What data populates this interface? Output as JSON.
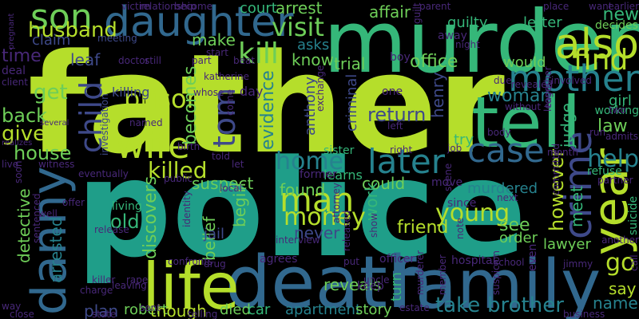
{
  "palette": {
    "background": "#000000",
    "lime": "#b5de2b",
    "green": "#6ece58",
    "teal": "#35b779",
    "sea": "#1f9e89",
    "cyan": "#26828e",
    "blue": "#31688e",
    "indigo": "#3e4989",
    "violet": "#482878",
    "purple": "#440154"
  },
  "words": [
    {
      "text": "father",
      "color": "lime"
    },
    {
      "text": "police",
      "color": "sea"
    },
    {
      "text": "murder",
      "color": "teal"
    },
    {
      "text": "death",
      "color": "blue"
    },
    {
      "text": "family",
      "color": "blue"
    },
    {
      "text": "tell",
      "color": "teal"
    },
    {
      "text": "life",
      "color": "lime"
    },
    {
      "text": "daughter",
      "color": "blue"
    },
    {
      "text": "danny",
      "color": "blue"
    },
    {
      "text": "son",
      "color": "green"
    },
    {
      "text": "also",
      "color": "lime"
    },
    {
      "text": "mother",
      "color": "cyan"
    },
    {
      "text": "year",
      "color": "lime"
    },
    {
      "text": "crime",
      "color": "indigo"
    },
    {
      "text": "man",
      "color": "lime"
    },
    {
      "text": "wife",
      "color": "lime"
    },
    {
      "text": "later",
      "color": "cyan"
    },
    {
      "text": "case",
      "color": "blue"
    },
    {
      "text": "child",
      "color": "indigo"
    },
    {
      "text": "tom",
      "color": "indigo"
    },
    {
      "text": "prison",
      "color": "lime"
    },
    {
      "text": "kill",
      "color": "green"
    },
    {
      "text": "find",
      "color": "lime"
    },
    {
      "text": "husband",
      "color": "lime"
    },
    {
      "text": "visit",
      "color": "green"
    },
    {
      "text": "take",
      "color": "cyan"
    },
    {
      "text": "brother",
      "color": "cyan"
    },
    {
      "text": "home",
      "color": "cyan"
    },
    {
      "text": "killed",
      "color": "lime"
    },
    {
      "text": "money",
      "color": "lime"
    },
    {
      "text": "young",
      "color": "lime"
    },
    {
      "text": "however",
      "color": "lime"
    },
    {
      "text": "help",
      "color": "cyan"
    },
    {
      "text": "go",
      "color": "lime"
    },
    {
      "text": "give",
      "color": "lime"
    },
    {
      "text": "back",
      "color": "green"
    },
    {
      "text": "get",
      "color": "green"
    },
    {
      "text": "time",
      "color": "violet"
    },
    {
      "text": "house",
      "color": "green"
    },
    {
      "text": "detective",
      "color": "green"
    },
    {
      "text": "arrested",
      "color": "cyan"
    },
    {
      "text": "evidence",
      "color": "cyan"
    },
    {
      "text": "woman",
      "color": "cyan"
    },
    {
      "text": "judge",
      "color": "teal"
    },
    {
      "text": "law",
      "color": "green"
    },
    {
      "text": "new",
      "color": "teal"
    },
    {
      "text": "arrest",
      "color": "green"
    },
    {
      "text": "affair",
      "color": "green"
    },
    {
      "text": "make",
      "color": "green"
    },
    {
      "text": "asks",
      "color": "cyan"
    },
    {
      "text": "know",
      "color": "green"
    },
    {
      "text": "trial",
      "color": "green"
    },
    {
      "text": "office",
      "color": "green"
    },
    {
      "text": "would",
      "color": "green"
    },
    {
      "text": "return",
      "color": "indigo"
    },
    {
      "text": "becomes",
      "color": "green"
    },
    {
      "text": "suspect",
      "color": "green"
    },
    {
      "text": "found",
      "color": "green"
    },
    {
      "text": "could",
      "color": "green"
    },
    {
      "text": "work",
      "color": "teal"
    },
    {
      "text": "friend",
      "color": "lime"
    },
    {
      "text": "see",
      "color": "green"
    },
    {
      "text": "order",
      "color": "green"
    },
    {
      "text": "lawyer",
      "color": "green"
    },
    {
      "text": "meet",
      "color": "teal"
    },
    {
      "text": "say",
      "color": "lime"
    },
    {
      "text": "name",
      "color": "cyan"
    },
    {
      "text": "plan",
      "color": "indigo"
    },
    {
      "text": "robert",
      "color": "green"
    },
    {
      "text": "though",
      "color": "lime"
    },
    {
      "text": "died",
      "color": "green"
    },
    {
      "text": "car",
      "color": "teal"
    },
    {
      "text": "apartment",
      "color": "cyan"
    },
    {
      "text": "story",
      "color": "green"
    },
    {
      "text": "turn",
      "color": "teal"
    },
    {
      "text": "reveals",
      "color": "green"
    },
    {
      "text": "old",
      "color": "teal"
    },
    {
      "text": "discovers",
      "color": "green"
    },
    {
      "text": "belief",
      "color": "green"
    },
    {
      "text": "begin",
      "color": "green"
    },
    {
      "text": "never",
      "color": "indigo"
    },
    {
      "text": "henry",
      "color": "indigo"
    },
    {
      "text": "anthony",
      "color": "indigo"
    },
    {
      "text": "criminal",
      "color": "indigo"
    },
    {
      "text": "leaf",
      "color": "indigo"
    },
    {
      "text": "claim",
      "color": "indigo"
    },
    {
      "text": "court",
      "color": "teal"
    },
    {
      "text": "guilty",
      "color": "teal"
    },
    {
      "text": "letter",
      "color": "teal"
    },
    {
      "text": "decides",
      "color": "green"
    },
    {
      "text": "try",
      "color": "teal"
    },
    {
      "text": "murdered",
      "color": "cyan"
    },
    {
      "text": "jail",
      "color": "indigo"
    },
    {
      "text": "living",
      "color": "teal"
    },
    {
      "text": "sister",
      "color": "teal"
    },
    {
      "text": "learns",
      "color": "teal"
    },
    {
      "text": "refuse",
      "color": "teal"
    },
    {
      "text": "girl",
      "color": "teal"
    },
    {
      "text": "working",
      "color": "teal"
    },
    {
      "text": "suicide",
      "color": "teal"
    },
    {
      "text": "killing",
      "color": "indigo"
    },
    {
      "text": "investigation",
      "color": "indigo"
    },
    {
      "text": "meeting",
      "color": "indigo"
    },
    {
      "text": "doctor",
      "color": "violet"
    },
    {
      "text": "relationship",
      "color": "violet"
    },
    {
      "text": "become",
      "color": "violet"
    },
    {
      "text": "pregnant",
      "color": "violet"
    },
    {
      "text": "deal",
      "color": "violet"
    },
    {
      "text": "client",
      "color": "violet"
    },
    {
      "text": "realizes",
      "color": "violet"
    },
    {
      "text": "several",
      "color": "violet"
    },
    {
      "text": "sentenced",
      "color": "violet"
    },
    {
      "text": "witness",
      "color": "violet"
    },
    {
      "text": "offer",
      "color": "violet"
    },
    {
      "text": "release",
      "color": "violet"
    },
    {
      "text": "well",
      "color": "violet"
    },
    {
      "text": "eventually",
      "color": "violet"
    },
    {
      "text": "soon",
      "color": "violet"
    },
    {
      "text": "live",
      "color": "violet"
    },
    {
      "text": "way",
      "color": "violet"
    },
    {
      "text": "close",
      "color": "violet"
    },
    {
      "text": "killer",
      "color": "violet"
    },
    {
      "text": "charge",
      "color": "violet"
    },
    {
      "text": "state",
      "color": "violet"
    },
    {
      "text": "telling",
      "color": "violet"
    },
    {
      "text": "leaving",
      "color": "violet"
    },
    {
      "text": "rape",
      "color": "violet"
    },
    {
      "text": "confronts",
      "color": "violet"
    },
    {
      "text": "drug",
      "color": "violet"
    },
    {
      "text": "identity",
      "color": "violet"
    },
    {
      "text": "named",
      "color": "violet"
    },
    {
      "text": "still",
      "color": "violet"
    },
    {
      "text": "katherine",
      "color": "violet"
    },
    {
      "text": "beat",
      "color": "violet"
    },
    {
      "text": "start",
      "color": "violet"
    },
    {
      "text": "part",
      "color": "violet"
    },
    {
      "text": "victim",
      "color": "violet"
    },
    {
      "text": "whose",
      "color": "violet"
    },
    {
      "text": "birth",
      "color": "violet"
    },
    {
      "text": "public",
      "color": "violet"
    },
    {
      "text": "told",
      "color": "violet"
    },
    {
      "text": "local",
      "color": "violet"
    },
    {
      "text": "let",
      "color": "violet"
    },
    {
      "text": "come",
      "color": "violet"
    },
    {
      "text": "day",
      "color": "violet"
    },
    {
      "text": "interview",
      "color": "violet"
    },
    {
      "text": "agrees",
      "color": "violet"
    },
    {
      "text": "former",
      "color": "violet"
    },
    {
      "text": "released",
      "color": "violet"
    },
    {
      "text": "attorney",
      "color": "violet"
    },
    {
      "text": "exchange",
      "color": "violet"
    },
    {
      "text": "one",
      "color": "violet"
    },
    {
      "text": "boy",
      "color": "violet"
    },
    {
      "text": "parent",
      "color": "violet"
    },
    {
      "text": "guilt",
      "color": "violet"
    },
    {
      "text": "night",
      "color": "violet"
    },
    {
      "text": "away",
      "color": "violet"
    },
    {
      "text": "left",
      "color": "violet"
    },
    {
      "text": "uncle",
      "color": "violet"
    },
    {
      "text": "put",
      "color": "violet"
    },
    {
      "text": "officer",
      "color": "violet"
    },
    {
      "text": "show",
      "color": "violet"
    },
    {
      "text": "right",
      "color": "violet"
    },
    {
      "text": "job",
      "color": "violet"
    },
    {
      "text": "move",
      "color": "violet"
    },
    {
      "text": "since",
      "color": "violet"
    },
    {
      "text": "scene",
      "color": "violet"
    },
    {
      "text": "estate",
      "color": "violet"
    },
    {
      "text": "member",
      "color": "violet"
    },
    {
      "text": "murderer",
      "color": "violet"
    },
    {
      "text": "hospital",
      "color": "violet"
    },
    {
      "text": "school",
      "color": "violet"
    },
    {
      "text": "even",
      "color": "violet"
    },
    {
      "text": "suspicion",
      "color": "violet"
    },
    {
      "text": "note",
      "color": "violet"
    },
    {
      "text": "next",
      "color": "violet"
    },
    {
      "text": "keep",
      "color": "violet"
    },
    {
      "text": "place",
      "color": "violet"
    },
    {
      "text": "want",
      "color": "violet"
    },
    {
      "text": "earlier",
      "color": "violet"
    },
    {
      "text": "due",
      "color": "violet"
    },
    {
      "text": "revealed",
      "color": "violet"
    },
    {
      "text": "without",
      "color": "violet"
    },
    {
      "text": "body",
      "color": "violet"
    },
    {
      "text": "leave",
      "color": "violet"
    },
    {
      "text": "committed",
      "color": "violet"
    },
    {
      "text": "month",
      "color": "violet"
    },
    {
      "text": "partner",
      "color": "violet"
    },
    {
      "text": "involved",
      "color": "violet"
    },
    {
      "text": "together",
      "color": "violet"
    },
    {
      "text": "two",
      "color": "violet"
    },
    {
      "text": "run",
      "color": "violet"
    },
    {
      "text": "call",
      "color": "violet"
    },
    {
      "text": "admits",
      "color": "violet"
    },
    {
      "text": "another",
      "color": "violet"
    },
    {
      "text": "jimmy",
      "color": "violet"
    },
    {
      "text": "business",
      "color": "violet"
    },
    {
      "text": "sent",
      "color": "violet"
    }
  ]
}
